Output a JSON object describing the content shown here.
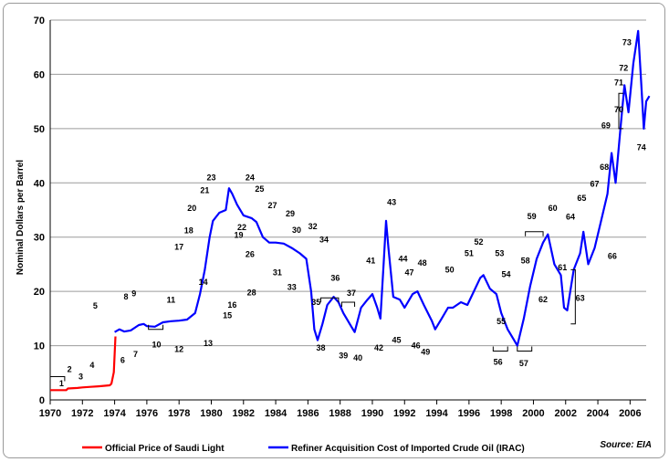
{
  "chart_data": {
    "type": "line",
    "ylabel": "Nominal Dollars per Barrel",
    "source": "Source: EIA",
    "xlim": [
      1970,
      2007
    ],
    "ylim": [
      0,
      70
    ],
    "x_ticks": [
      "1970",
      "1972",
      "1974",
      "1976",
      "1978",
      "1980",
      "1982",
      "1984",
      "1986",
      "1988",
      "1990",
      "1992",
      "1994",
      "1996",
      "1998",
      "2000",
      "2002",
      "2004",
      "2006"
    ],
    "y_ticks": [
      "0",
      "10",
      "20",
      "30",
      "40",
      "50",
      "60",
      "70"
    ],
    "grid": true,
    "legend_position": "bottom",
    "colors": {
      "saudi": "#ff0000",
      "irac": "#0000ff"
    },
    "series": [
      {
        "name": "Official Price of Saudi Light",
        "color": "#ff0000",
        "points": [
          [
            1970,
            1.8
          ],
          [
            1971.0,
            1.8
          ],
          [
            1971.1,
            2.1
          ],
          [
            1971.7,
            2.2
          ],
          [
            1972.0,
            2.3
          ],
          [
            1972.5,
            2.4
          ],
          [
            1973.0,
            2.5
          ],
          [
            1973.7,
            2.7
          ],
          [
            1973.8,
            3.0
          ],
          [
            1973.95,
            5.1
          ],
          [
            1974.05,
            11.7
          ]
        ]
      },
      {
        "name": "Refiner Acquisition Cost of Imported Crude Oil (IRAC)",
        "color": "#0000ff",
        "points": [
          [
            1974.0,
            12.5
          ],
          [
            1974.3,
            13.0
          ],
          [
            1974.6,
            12.6
          ],
          [
            1975.0,
            12.8
          ],
          [
            1975.5,
            13.8
          ],
          [
            1975.8,
            14.0
          ],
          [
            1976.0,
            13.6
          ],
          [
            1976.5,
            13.5
          ],
          [
            1977.0,
            14.3
          ],
          [
            1977.5,
            14.5
          ],
          [
            1978.0,
            14.6
          ],
          [
            1978.5,
            14.8
          ],
          [
            1979.0,
            16.0
          ],
          [
            1979.3,
            19.5
          ],
          [
            1979.6,
            24.0
          ],
          [
            1979.9,
            30.0
          ],
          [
            1980.1,
            33.0
          ],
          [
            1980.5,
            34.5
          ],
          [
            1980.9,
            35.0
          ],
          [
            1981.1,
            39.0
          ],
          [
            1981.3,
            38.0
          ],
          [
            1981.6,
            36.0
          ],
          [
            1982.0,
            34.0
          ],
          [
            1982.5,
            33.5
          ],
          [
            1982.8,
            32.8
          ],
          [
            1983.2,
            30.0
          ],
          [
            1983.6,
            29.0
          ],
          [
            1984.0,
            29.0
          ],
          [
            1984.5,
            28.8
          ],
          [
            1985.0,
            28.0
          ],
          [
            1985.5,
            27.0
          ],
          [
            1985.9,
            26.0
          ],
          [
            1986.2,
            20.0
          ],
          [
            1986.4,
            13.0
          ],
          [
            1986.6,
            11.0
          ],
          [
            1986.9,
            14.0
          ],
          [
            1987.2,
            17.5
          ],
          [
            1987.6,
            19.0
          ],
          [
            1987.9,
            18.0
          ],
          [
            1988.2,
            16.0
          ],
          [
            1988.7,
            13.5
          ],
          [
            1988.9,
            12.5
          ],
          [
            1989.3,
            17.0
          ],
          [
            1989.7,
            18.5
          ],
          [
            1990.0,
            19.5
          ],
          [
            1990.3,
            17.0
          ],
          [
            1990.5,
            15.0
          ],
          [
            1990.7,
            25.0
          ],
          [
            1990.85,
            33.0
          ],
          [
            1991.0,
            28.0
          ],
          [
            1991.3,
            19.0
          ],
          [
            1991.7,
            18.5
          ],
          [
            1992.0,
            17.0
          ],
          [
            1992.5,
            19.5
          ],
          [
            1992.8,
            20.0
          ],
          [
            1993.2,
            17.5
          ],
          [
            1993.7,
            14.5
          ],
          [
            1993.9,
            13.0
          ],
          [
            1994.3,
            15.0
          ],
          [
            1994.7,
            17.0
          ],
          [
            1995.0,
            17.0
          ],
          [
            1995.5,
            18.0
          ],
          [
            1995.9,
            17.5
          ],
          [
            1996.3,
            20.0
          ],
          [
            1996.7,
            22.5
          ],
          [
            1996.9,
            23.0
          ],
          [
            1997.3,
            20.5
          ],
          [
            1997.7,
            19.5
          ],
          [
            1998.0,
            16.0
          ],
          [
            1998.4,
            13.0
          ],
          [
            1998.8,
            11.0
          ],
          [
            1999.0,
            10.0
          ],
          [
            1999.4,
            15.0
          ],
          [
            1999.8,
            21.0
          ],
          [
            2000.2,
            26.0
          ],
          [
            2000.6,
            29.0
          ],
          [
            2000.9,
            30.5
          ],
          [
            2001.3,
            25.0
          ],
          [
            2001.7,
            23.0
          ],
          [
            2001.9,
            17.0
          ],
          [
            2002.1,
            16.5
          ],
          [
            2002.5,
            24.0
          ],
          [
            2002.9,
            27.0
          ],
          [
            2003.1,
            31.0
          ],
          [
            2003.4,
            25.0
          ],
          [
            2003.8,
            28.0
          ],
          [
            2004.2,
            33.0
          ],
          [
            2004.6,
            38.0
          ],
          [
            2004.85,
            45.5
          ],
          [
            2005.1,
            40.0
          ],
          [
            2005.4,
            50.0
          ],
          [
            2005.65,
            58.0
          ],
          [
            2005.9,
            53.0
          ],
          [
            2006.2,
            62.0
          ],
          [
            2006.5,
            68.0
          ],
          [
            2006.7,
            58.0
          ],
          [
            2006.85,
            50.0
          ],
          [
            2007.0,
            55.0
          ],
          [
            2007.2,
            56.0
          ]
        ]
      }
    ],
    "annotations": [
      {
        "label": "1",
        "x": 1970.7,
        "y": 3.0
      },
      {
        "label": "2",
        "x": 1971.2,
        "y": 5.6
      },
      {
        "label": "3",
        "x": 1971.9,
        "y": 4.3
      },
      {
        "label": "4",
        "x": 1972.6,
        "y": 6.4
      },
      {
        "label": "5",
        "x": 1972.8,
        "y": 17.3
      },
      {
        "label": "6",
        "x": 1974.5,
        "y": 7.3
      },
      {
        "label": "7",
        "x": 1975.3,
        "y": 8.4
      },
      {
        "label": "8",
        "x": 1974.7,
        "y": 19.0
      },
      {
        "label": "9",
        "x": 1975.2,
        "y": 19.6
      },
      {
        "label": "10",
        "x": 1976.6,
        "y": 10.2
      },
      {
        "label": "11",
        "x": 1977.5,
        "y": 18.4
      },
      {
        "label": "12",
        "x": 1978.0,
        "y": 9.3
      },
      {
        "label": "13",
        "x": 1979.8,
        "y": 10.4
      },
      {
        "label": "14",
        "x": 1979.5,
        "y": 21.7
      },
      {
        "label": "15",
        "x": 1981.0,
        "y": 15.6
      },
      {
        "label": "16",
        "x": 1981.3,
        "y": 17.5
      },
      {
        "label": "17",
        "x": 1978.0,
        "y": 28.2
      },
      {
        "label": "18",
        "x": 1978.6,
        "y": 31.2
      },
      {
        "label": "19",
        "x": 1981.7,
        "y": 30.4
      },
      {
        "label": "20",
        "x": 1978.8,
        "y": 35.3
      },
      {
        "label": "21",
        "x": 1979.6,
        "y": 38.6
      },
      {
        "label": "22",
        "x": 1981.9,
        "y": 31.8
      },
      {
        "label": "23",
        "x": 1980.0,
        "y": 41.0
      },
      {
        "label": "24",
        "x": 1982.4,
        "y": 41.0
      },
      {
        "label": "25",
        "x": 1983.0,
        "y": 38.9
      },
      {
        "label": "26",
        "x": 1982.4,
        "y": 26.8
      },
      {
        "label": "27",
        "x": 1983.8,
        "y": 35.8
      },
      {
        "label": "28",
        "x": 1982.5,
        "y": 19.8
      },
      {
        "label": "29",
        "x": 1984.9,
        "y": 34.3
      },
      {
        "label": "30",
        "x": 1985.3,
        "y": 31.3
      },
      {
        "label": "31",
        "x": 1984.1,
        "y": 23.5
      },
      {
        "label": "32",
        "x": 1986.3,
        "y": 32.0
      },
      {
        "label": "33",
        "x": 1985.0,
        "y": 20.8
      },
      {
        "label": "34",
        "x": 1987.0,
        "y": 29.5
      },
      {
        "label": "35",
        "x": 1986.5,
        "y": 18.0
      },
      {
        "label": "36",
        "x": 1987.7,
        "y": 22.5
      },
      {
        "label": "37",
        "x": 1988.7,
        "y": 19.7
      },
      {
        "label": "38",
        "x": 1986.8,
        "y": 9.6
      },
      {
        "label": "39",
        "x": 1988.2,
        "y": 8.2
      },
      {
        "label": "40",
        "x": 1989.1,
        "y": 7.7
      },
      {
        "label": "41",
        "x": 1989.9,
        "y": 25.7
      },
      {
        "label": "42",
        "x": 1990.4,
        "y": 9.6
      },
      {
        "label": "43",
        "x": 1991.2,
        "y": 36.4
      },
      {
        "label": "44",
        "x": 1991.9,
        "y": 26.0
      },
      {
        "label": "45",
        "x": 1991.5,
        "y": 11.0
      },
      {
        "label": "46",
        "x": 1992.7,
        "y": 10.0
      },
      {
        "label": "47",
        "x": 1992.3,
        "y": 23.5
      },
      {
        "label": "48",
        "x": 1993.1,
        "y": 25.2
      },
      {
        "label": "49",
        "x": 1993.3,
        "y": 8.8
      },
      {
        "label": "50",
        "x": 1994.8,
        "y": 24.0
      },
      {
        "label": "51",
        "x": 1996.0,
        "y": 27.0
      },
      {
        "label": "52",
        "x": 1996.6,
        "y": 29.1
      },
      {
        "label": "53",
        "x": 1997.9,
        "y": 27.0
      },
      {
        "label": "54",
        "x": 1998.3,
        "y": 23.1
      },
      {
        "label": "55",
        "x": 1998.0,
        "y": 14.5
      },
      {
        "label": "56",
        "x": 1997.8,
        "y": 7.0
      },
      {
        "label": "57",
        "x": 1999.4,
        "y": 6.7
      },
      {
        "label": "58",
        "x": 1999.5,
        "y": 25.7
      },
      {
        "label": "59",
        "x": 1999.9,
        "y": 33.8
      },
      {
        "label": "60",
        "x": 2001.2,
        "y": 35.3
      },
      {
        "label": "61",
        "x": 2001.8,
        "y": 24.4
      },
      {
        "label": "62",
        "x": 2000.6,
        "y": 18.5
      },
      {
        "label": "63",
        "x": 2002.9,
        "y": 18.8
      },
      {
        "label": "64",
        "x": 2002.3,
        "y": 33.7
      },
      {
        "label": "65",
        "x": 2003.0,
        "y": 37.2
      },
      {
        "label": "66",
        "x": 2004.9,
        "y": 26.5
      },
      {
        "label": "67",
        "x": 2003.8,
        "y": 39.8
      },
      {
        "label": "68",
        "x": 2004.4,
        "y": 42.9
      },
      {
        "label": "69",
        "x": 2004.5,
        "y": 50.6
      },
      {
        "label": "70",
        "x": 2005.3,
        "y": 53.5
      },
      {
        "label": "71",
        "x": 2005.3,
        "y": 58.5
      },
      {
        "label": "72",
        "x": 2005.6,
        "y": 61.2
      },
      {
        "label": "73",
        "x": 2005.8,
        "y": 65.9
      },
      {
        "label": "74",
        "x": 2006.7,
        "y": 46.5
      }
    ]
  }
}
